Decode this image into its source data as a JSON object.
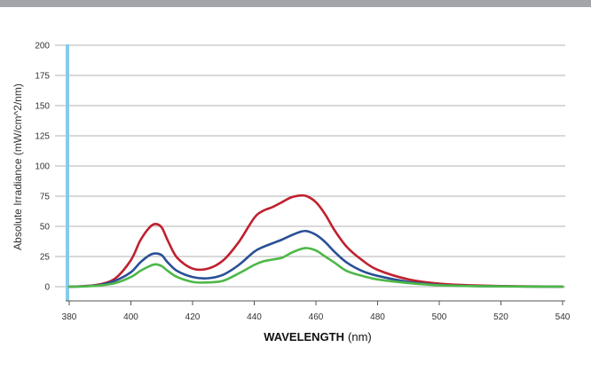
{
  "chart_data": {
    "type": "line",
    "xlabel_bold": "WAVELENGTH",
    "xlabel_unit": "(nm)",
    "ylabel": "Absolute Irradiance (mW/cm^2/nm)",
    "xlim": [
      380,
      540
    ],
    "ylim": [
      0,
      200
    ],
    "x_ticks": [
      380,
      400,
      420,
      440,
      460,
      480,
      500,
      520,
      540
    ],
    "y_ticks": [
      0,
      25,
      50,
      75,
      100,
      125,
      150,
      175,
      200
    ],
    "grid": true,
    "series": [
      {
        "color": "#c0202e",
        "x": [
          380,
          385,
          390,
          395,
          400,
          403,
          406,
          408,
          410,
          412,
          415,
          420,
          425,
          430,
          435,
          440,
          443,
          446,
          449,
          452,
          455,
          457,
          460,
          463,
          466,
          470,
          475,
          480,
          490,
          500,
          510,
          520,
          530,
          540
        ],
        "y": [
          0,
          0.5,
          2,
          7,
          22,
          38,
          49,
          52,
          49,
          38,
          24,
          15,
          15,
          22,
          37,
          57,
          63,
          66,
          70,
          74,
          75.5,
          75,
          70,
          60,
          47,
          33,
          22,
          14,
          6,
          2.5,
          1.2,
          0.5,
          0.2,
          0
        ]
      },
      {
        "color": "#2a4f96",
        "x": [
          380,
          385,
          390,
          395,
          400,
          403,
          406,
          408,
          410,
          412,
          415,
          420,
          425,
          430,
          435,
          440,
          443,
          446,
          449,
          452,
          455,
          457,
          460,
          463,
          466,
          470,
          475,
          480,
          490,
          500,
          510,
          520,
          530,
          540
        ],
        "y": [
          0,
          0.3,
          1.5,
          5,
          12,
          20,
          26,
          27.5,
          26,
          20,
          13,
          8,
          7,
          10,
          18,
          29,
          33,
          36,
          39,
          42.5,
          45.5,
          46,
          43,
          37,
          29,
          20,
          13,
          9,
          4,
          1.5,
          0.6,
          0.3,
          0.1,
          0
        ]
      },
      {
        "color": "#4db848",
        "x": [
          380,
          385,
          390,
          395,
          400,
          403,
          406,
          408,
          410,
          412,
          415,
          420,
          425,
          430,
          435,
          440,
          443,
          446,
          449,
          452,
          455,
          457,
          460,
          463,
          466,
          470,
          475,
          480,
          490,
          500,
          510,
          520,
          530,
          540
        ],
        "y": [
          0,
          0.2,
          1,
          3,
          8,
          13,
          17,
          18.5,
          17,
          13,
          8,
          4,
          3.5,
          5,
          11,
          18,
          21,
          22.5,
          24,
          28,
          31,
          32,
          30,
          25,
          20,
          13,
          9,
          6,
          3,
          1.2,
          0.5,
          0.2,
          0.1,
          0
        ]
      }
    ]
  }
}
